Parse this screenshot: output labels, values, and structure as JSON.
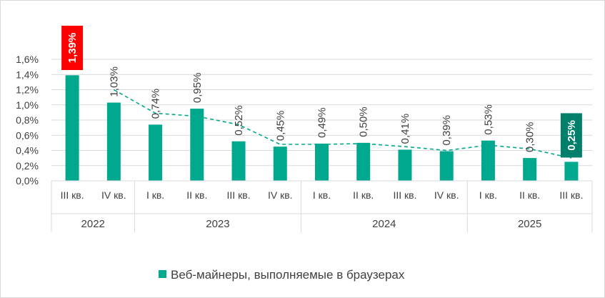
{
  "chart_data": {
    "type": "bar",
    "ylim": [
      0,
      1.6
    ],
    "yticks": [
      "0,0%",
      "0,2%",
      "0,4%",
      "0,6%",
      "0,8%",
      "1,0%",
      "1,2%",
      "1,4%",
      "1,6%"
    ],
    "ytick_values": [
      0,
      0.2,
      0.4,
      0.6,
      0.8,
      1.0,
      1.2,
      1.4,
      1.6
    ],
    "grid": true,
    "legend_position": "bottom",
    "categories": [
      "III кв.",
      "IV кв.",
      "I кв.",
      "II кв.",
      "III кв.",
      "IV кв.",
      "I кв.",
      "II кв.",
      "III кв.",
      "IV кв.",
      "I кв.",
      "II кв.",
      "III кв."
    ],
    "groups": [
      {
        "label": "2022",
        "count": 2
      },
      {
        "label": "2023",
        "count": 4
      },
      {
        "label": "2024",
        "count": 4
      },
      {
        "label": "2025",
        "count": 3
      }
    ],
    "series": [
      {
        "name": "Веб-майнеры, выполняемые в браузерах",
        "color": "#00a88e",
        "values": [
          1.39,
          1.03,
          0.74,
          0.95,
          0.52,
          0.45,
          0.49,
          0.5,
          0.41,
          0.39,
          0.53,
          0.3,
          0.25
        ],
        "labels": [
          "1,39%",
          "1,03%",
          "0,74%",
          "0,95%",
          "0,52%",
          "0,45%",
          "0,49%",
          "0,50%",
          "0,41%",
          "0,39%",
          "0,53%",
          "0,30%",
          "0,25%"
        ]
      }
    ],
    "trendline": {
      "style": "dashed",
      "color": "#00a88e",
      "values": [
        null,
        1.2,
        0.89,
        0.85,
        0.74,
        0.48,
        0.48,
        0.49,
        0.45,
        0.4,
        0.47,
        0.42,
        0.3
      ]
    },
    "highlights": [
      {
        "index": 0,
        "color": "#ff0000"
      },
      {
        "index": 12,
        "color": "#00806a"
      }
    ]
  }
}
